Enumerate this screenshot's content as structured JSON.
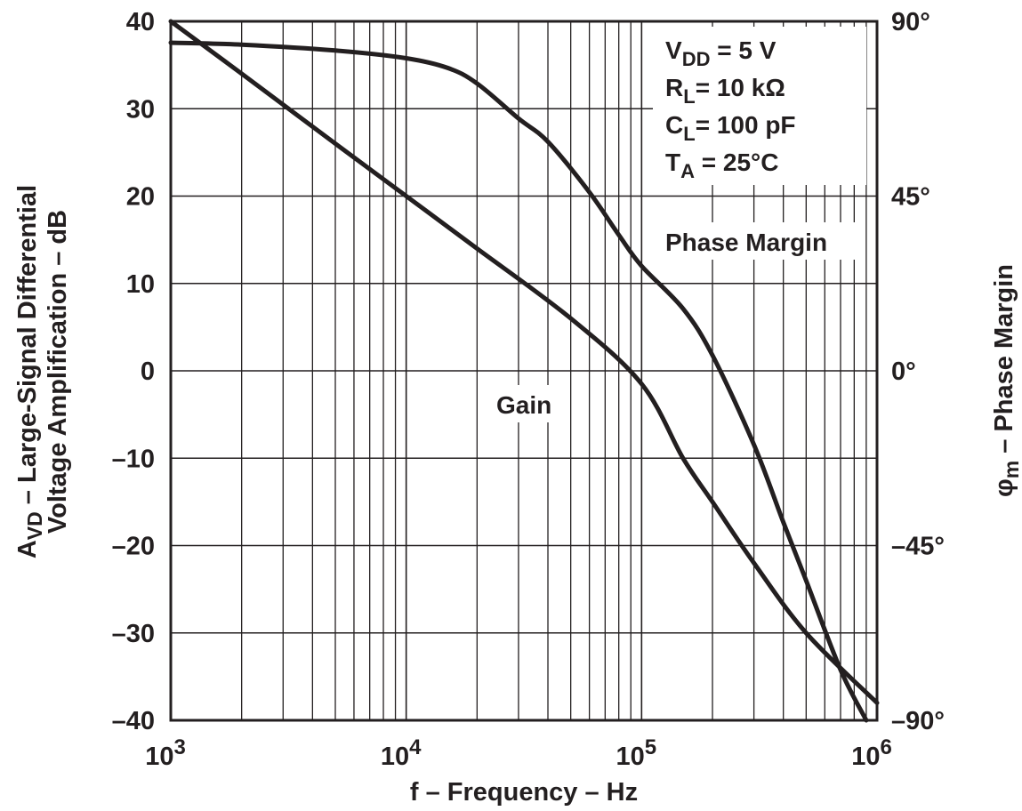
{
  "chart_data": {
    "type": "line",
    "title": "",
    "xlabel": "f – Frequency – Hz",
    "xscale": "log",
    "xlim": [
      1000,
      1000000
    ],
    "xticks": [
      {
        "value": 1000,
        "base": "10",
        "exp": "3"
      },
      {
        "value": 10000,
        "base": "10",
        "exp": "4"
      },
      {
        "value": 100000,
        "base": "10",
        "exp": "5"
      },
      {
        "value": 1000000,
        "base": "10",
        "exp": "6"
      }
    ],
    "ylabel_left": {
      "line1_main": "A",
      "line1_sub": "VD",
      "line1_rest": " – Large-Signal Differential",
      "line2": "Voltage Amplification – dB"
    },
    "ylim_left": [
      -40,
      40
    ],
    "yticks_left": [
      "40",
      "30",
      "20",
      "10",
      "0",
      "–10",
      "–20",
      "–30",
      "–40"
    ],
    "ylabel_right": {
      "main": "φ",
      "sub": "m",
      "rest": " – Phase Margin"
    },
    "ylim_right": [
      -90,
      90
    ],
    "yticks_right": [
      "90°",
      "45°",
      "0°",
      "–45°",
      "–90°"
    ],
    "grid": true,
    "legend_box": {
      "vdd": {
        "main": "V",
        "sub": "DD",
        "rest": " = 5 V"
      },
      "rl": {
        "main": "R",
        "sub": "L",
        "rest": "= 10 kΩ"
      },
      "cl": {
        "main": "C",
        "sub": "L",
        "rest": "= 100 pF"
      },
      "ta": {
        "main": "T",
        "sub": "A",
        "rest": " = 25°C"
      }
    },
    "series": [
      {
        "name": "Gain",
        "axis": "left",
        "x": [
          1000,
          2000,
          5000,
          10000,
          20000,
          50000,
          100000,
          150000,
          200000,
          300000,
          500000,
          1000000
        ],
        "y": [
          40,
          34,
          26,
          20,
          14,
          6,
          -1.5,
          -10,
          -15,
          -22,
          -30,
          -38
        ]
      },
      {
        "name": "Phase Margin",
        "axis": "right",
        "x": [
          1000,
          2000,
          5000,
          10000,
          15000,
          20000,
          30000,
          40000,
          60000,
          80000,
          100000,
          150000,
          200000,
          300000,
          400000,
          500000,
          700000,
          900000
        ],
        "y": [
          84.5,
          84,
          82.5,
          80.5,
          78,
          74,
          65,
          59,
          46,
          35,
          27,
          16,
          4,
          -19,
          -39,
          -54,
          -77,
          -90
        ]
      }
    ],
    "annotations": {
      "gain_label": "Gain",
      "phase_label": "Phase Margin"
    }
  }
}
